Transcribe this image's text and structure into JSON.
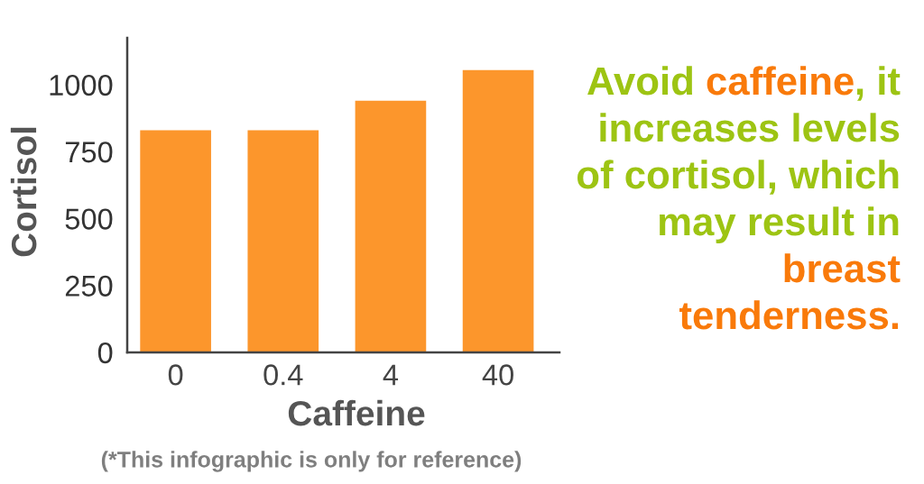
{
  "chart_data": {
    "type": "bar",
    "categories": [
      "0",
      "0.4",
      "4",
      "40"
    ],
    "values": [
      830,
      830,
      940,
      1055
    ],
    "color": "#fc962c",
    "xlabel": "Caffeine",
    "ylabel": "Cortisol",
    "ylim": [
      0,
      1175
    ],
    "yticks": [
      0,
      250,
      500,
      750,
      1000
    ],
    "annotations": [
      "Avoid ",
      "caffeine",
      ", it\n",
      "increases levels\nof cortisol, which\nmay result in\n",
      "breast\ntenderness.",
      "(*This infographic is only for reference)"
    ]
  }
}
